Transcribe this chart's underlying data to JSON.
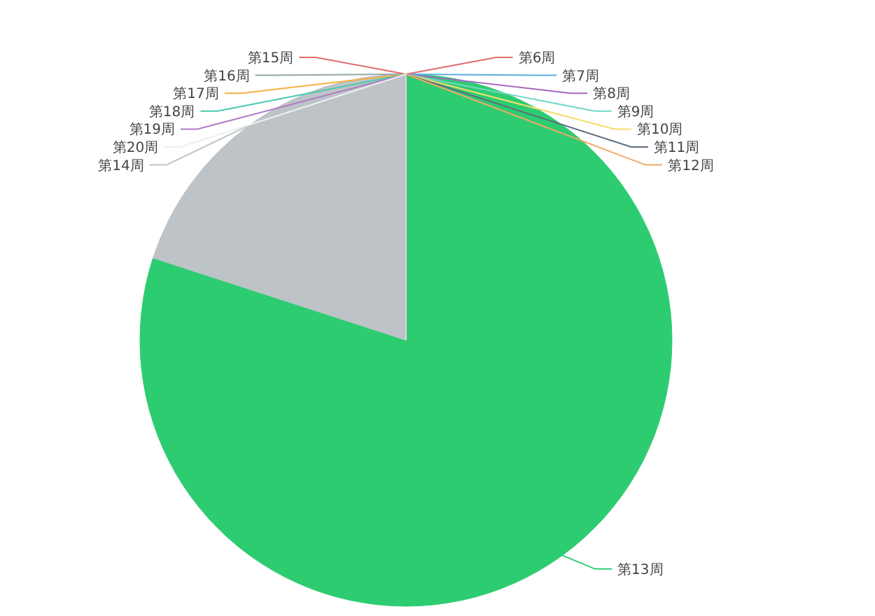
{
  "chart_data": {
    "type": "pie",
    "categories": [
      "第6周",
      "第7周",
      "第8周",
      "第9周",
      "第10周",
      "第11周",
      "第12周",
      "第13周",
      "第14周",
      "第15周",
      "第16周",
      "第17周",
      "第18周",
      "第19周",
      "第20周"
    ],
    "values": [
      0,
      0,
      0,
      0,
      0,
      0,
      0,
      80,
      20,
      0,
      0,
      0,
      0,
      0,
      0
    ],
    "colors": [
      "#e06c6c",
      "#5dade2",
      "#a569bd",
      "#76d7c4",
      "#f7dc6f",
      "#5d6d7e",
      "#f0a868",
      "#2ecc71",
      "#bdc3c7",
      "#e06c6c",
      "#95a5a6",
      "#f5b041",
      "#48c9b0",
      "#af7ac5",
      "#ecf0f1"
    ]
  }
}
